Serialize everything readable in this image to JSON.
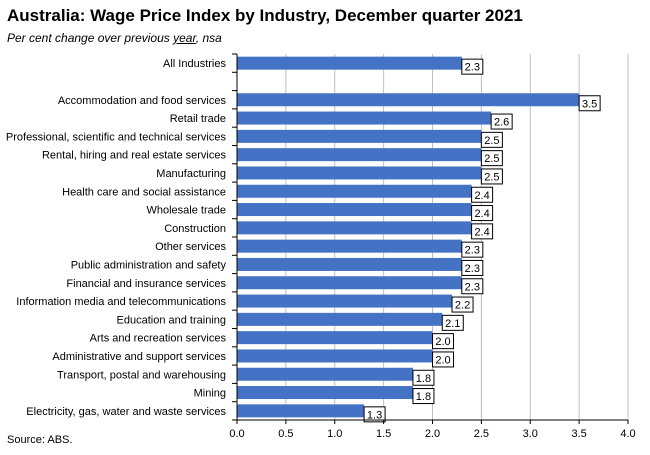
{
  "title": "Australia:  Wage Price Index by Industry, December quarter 2021",
  "subtitle_prefix": "Per cent change over previous ",
  "subtitle_underlined": "year",
  "subtitle_suffix": ", nsa",
  "source": "Source: ABS.",
  "colors": {
    "bar": "#4472c4",
    "grid": "#bfbfbf",
    "axis": "#000000"
  },
  "chart_data": {
    "type": "bar",
    "orientation": "horizontal",
    "title": "Australia:  Wage Price Index by Industry, December quarter 2021",
    "subtitle": "Per cent change over previous year, nsa",
    "xlim": [
      0,
      4.0
    ],
    "xticks": [
      "0.0",
      "0.5",
      "1.0",
      "1.5",
      "2.0",
      "2.5",
      "3.0",
      "3.5",
      "4.0"
    ],
    "grid": true,
    "categories": [
      "All Industries",
      "",
      "Accommodation and food services",
      "Retail trade",
      "Professional, scientific and technical services",
      "Rental, hiring and real estate services",
      "Manufacturing",
      "Health care and social assistance",
      "Wholesale trade",
      "Construction",
      "Other services",
      "Public administration and safety",
      "Financial and insurance services",
      "Information media and telecommunications",
      "Education and training",
      "Arts and recreation services",
      "Administrative and support services",
      "Transport, postal and warehousing",
      "Mining",
      "Electricity, gas, water and waste services"
    ],
    "values": [
      2.3,
      null,
      3.5,
      2.6,
      2.5,
      2.5,
      2.5,
      2.4,
      2.4,
      2.4,
      2.3,
      2.3,
      2.3,
      2.2,
      2.1,
      2.0,
      2.0,
      1.8,
      1.8,
      1.3
    ],
    "labels": [
      "2.3",
      "",
      "3.5",
      "2.6",
      "2.5",
      "2.5",
      "2.5",
      "2.4",
      "2.4",
      "2.4",
      "2.3",
      "2.3",
      "2.3",
      "2.2",
      "2.1",
      "2.0",
      "2.0",
      "1.8",
      "1.8",
      "1.3"
    ]
  }
}
